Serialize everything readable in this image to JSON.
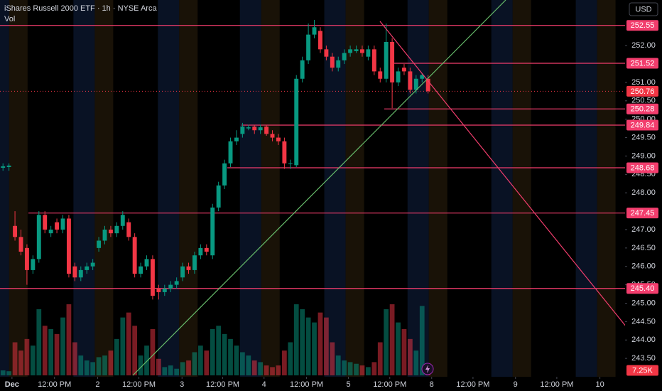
{
  "chart_data": {
    "type": "candlestick",
    "title": "iShares Russell 2000 ETF · 1h · NYSE Arca",
    "volume_title": "Vol",
    "currency": "USD",
    "up_color": "#089981",
    "down_color": "#f23645",
    "level_color": "#f23d6d",
    "grid": false,
    "open": [
      248.68,
      248.7,
      247.1,
      246.8,
      246.5,
      245.9,
      246.2,
      247.4,
      246.9,
      247.2,
      247.0,
      247.3,
      246.0,
      245.7,
      245.9,
      246.0,
      246.5,
      246.7,
      247.0,
      246.9,
      247.1,
      247.2,
      246.8,
      245.8,
      246.0,
      246.2,
      245.4,
      245.3,
      245.4,
      245.5,
      245.7,
      246.0,
      245.9,
      246.3,
      246.5,
      246.3,
      247.6,
      248.2,
      248.8,
      249.4,
      249.6,
      249.75,
      249.8,
      249.7,
      249.8,
      249.6,
      249.5,
      249.4,
      248.8,
      248.75,
      251.1,
      251.6,
      252.3,
      252.4,
      251.9,
      251.7,
      251.4,
      251.6,
      251.8,
      251.85,
      251.9,
      251.7,
      251.9,
      251.3,
      251.1,
      252.1,
      251.0,
      251.4,
      251.3,
      250.8,
      251.1,
      251.1
    ],
    "high": [
      248.8,
      248.8,
      247.5,
      247.0,
      246.6,
      246.3,
      247.5,
      247.5,
      247.1,
      247.3,
      247.4,
      247.4,
      246.1,
      246.0,
      246.1,
      246.2,
      246.8,
      247.1,
      247.1,
      247.2,
      247.5,
      247.3,
      246.9,
      246.1,
      246.3,
      246.3,
      245.5,
      245.5,
      245.6,
      245.7,
      246.1,
      246.1,
      246.4,
      246.6,
      246.6,
      247.7,
      248.3,
      248.9,
      249.5,
      249.7,
      249.9,
      249.85,
      249.85,
      249.85,
      249.85,
      249.7,
      249.6,
      249.5,
      248.9,
      251.2,
      251.7,
      252.6,
      252.7,
      252.5,
      252.0,
      251.8,
      251.7,
      251.9,
      252.0,
      252.0,
      252.0,
      252.0,
      252.0,
      251.4,
      252.6,
      252.2,
      251.4,
      251.5,
      251.4,
      251.2,
      251.25,
      251.2
    ],
    "low": [
      248.6,
      248.6,
      246.7,
      246.3,
      245.5,
      245.8,
      246.1,
      246.9,
      246.8,
      246.9,
      246.9,
      245.7,
      245.6,
      245.6,
      245.8,
      245.9,
      246.4,
      246.6,
      246.8,
      246.8,
      247.0,
      246.7,
      245.7,
      245.7,
      245.9,
      245.1,
      245.1,
      245.2,
      245.3,
      245.4,
      245.6,
      245.8,
      245.8,
      246.2,
      246.3,
      246.2,
      247.5,
      248.1,
      248.7,
      249.3,
      249.5,
      249.7,
      249.6,
      249.6,
      249.55,
      249.4,
      249.3,
      248.65,
      248.65,
      248.7,
      251.0,
      251.5,
      252.2,
      251.8,
      251.6,
      251.3,
      251.3,
      251.5,
      251.7,
      251.8,
      251.7,
      251.6,
      251.2,
      251.0,
      251.0,
      250.3,
      250.9,
      251.2,
      250.7,
      250.7,
      251.0,
      250.7
    ],
    "close": [
      248.72,
      248.74,
      246.8,
      246.4,
      245.9,
      246.2,
      247.4,
      247.0,
      247.0,
      247.0,
      247.3,
      245.8,
      245.7,
      245.9,
      246.0,
      246.1,
      246.7,
      247.0,
      246.9,
      247.1,
      247.4,
      246.8,
      245.8,
      246.0,
      246.2,
      245.2,
      245.3,
      245.4,
      245.5,
      245.6,
      246.0,
      245.9,
      246.3,
      246.5,
      246.4,
      247.6,
      248.2,
      248.8,
      249.4,
      249.5,
      249.8,
      249.78,
      249.7,
      249.78,
      249.6,
      249.5,
      249.4,
      248.8,
      248.8,
      251.1,
      251.6,
      252.3,
      252.5,
      251.9,
      251.7,
      251.4,
      251.6,
      251.8,
      251.9,
      251.9,
      251.8,
      251.9,
      251.3,
      251.1,
      252.1,
      251.0,
      251.3,
      251.3,
      250.8,
      251.1,
      251.2,
      250.76
    ],
    "volume": [
      3000,
      2500,
      20000,
      15000,
      22000,
      18000,
      40000,
      30000,
      28000,
      25000,
      35000,
      43000,
      20000,
      12000,
      9000,
      8000,
      11000,
      12000,
      15000,
      22000,
      35000,
      38000,
      30000,
      12000,
      18000,
      28000,
      10000,
      5000,
      6000,
      4000,
      8000,
      9000,
      14000,
      18000,
      15000,
      28000,
      30000,
      25000,
      22000,
      18000,
      14000,
      12000,
      9000,
      8000,
      6000,
      5000,
      6000,
      15000,
      20000,
      43000,
      40000,
      35000,
      32000,
      38000,
      35000,
      20000,
      12000,
      9000,
      8000,
      7000,
      6000,
      5000,
      8000,
      20000,
      40000,
      43000,
      32000,
      28000,
      22000,
      15000,
      42000,
      7250
    ],
    "volume_value_labels": [
      null,
      null,
      null,
      null,
      null,
      null,
      null,
      null,
      null,
      null,
      null,
      null,
      null,
      null,
      null,
      null,
      null,
      null,
      null,
      null,
      null,
      null,
      null,
      null,
      null,
      null,
      null,
      null,
      null,
      null,
      null,
      null,
      null,
      null,
      null,
      null,
      null,
      null,
      null,
      null,
      null,
      null,
      null,
      null,
      null,
      null,
      null,
      null,
      null,
      null,
      null,
      null,
      null,
      null,
      null,
      null,
      null,
      null,
      null,
      null,
      null,
      null,
      null,
      null,
      null,
      null,
      null,
      null,
      null,
      null,
      null,
      "7.25K"
    ],
    "current_price": 250.76,
    "levels": [
      {
        "value": 252.55
      },
      {
        "value": 251.52
      },
      {
        "value": 250.28
      },
      {
        "value": 249.84
      },
      {
        "value": 248.68
      },
      {
        "value": 247.45
      },
      {
        "value": 245.4,
        "label": "245.40"
      }
    ],
    "xlim": [
      -0.5,
      103.9
    ],
    "ylim": [
      243.0,
      253.24
    ],
    "yticks": [
      {
        "value": 252,
        "label": "252.00"
      },
      {
        "value": 251,
        "label": "251.00"
      },
      {
        "value": 250.5,
        "label": "250.50"
      },
      {
        "value": 250,
        "label": "250.00"
      },
      {
        "value": 249.5,
        "label": "249.50"
      },
      {
        "value": 249,
        "label": "249.00"
      },
      {
        "value": 248.5,
        "label": "248.50"
      },
      {
        "value": 248,
        "label": "248.00"
      },
      {
        "value": 247,
        "label": "247.00"
      },
      {
        "value": 246.5,
        "label": "246.50"
      },
      {
        "value": 246,
        "label": "246.00"
      },
      {
        "value": 245.5,
        "label": "245.50"
      },
      {
        "value": 245,
        "label": "245.00"
      },
      {
        "value": 244.5,
        "label": "244.50"
      },
      {
        "value": 244,
        "label": "244.00"
      },
      {
        "value": 243.5,
        "label": "243.50"
      }
    ],
    "xticks": [
      {
        "value": 1.5,
        "label": "Dec"
      },
      {
        "value": 8.6,
        "label": "12:00 PM"
      },
      {
        "value": 15.8,
        "label": "2"
      },
      {
        "value": 22.7,
        "label": "12:00 PM"
      },
      {
        "value": 29.9,
        "label": "3"
      },
      {
        "value": 36.7,
        "label": "12:00 PM"
      },
      {
        "value": 43.6,
        "label": "4"
      },
      {
        "value": 50.7,
        "label": "12:00 PM"
      },
      {
        "value": 57.7,
        "label": "5"
      },
      {
        "value": 64.6,
        "label": "12:00 PM"
      },
      {
        "value": 71.6,
        "label": "8"
      },
      {
        "value": 78.5,
        "label": "12:00 PM"
      },
      {
        "value": 85.6,
        "label": "9"
      },
      {
        "value": 92.5,
        "label": "12:00 PM"
      },
      {
        "value": 99.7,
        "label": "10"
      }
    ]
  }
}
